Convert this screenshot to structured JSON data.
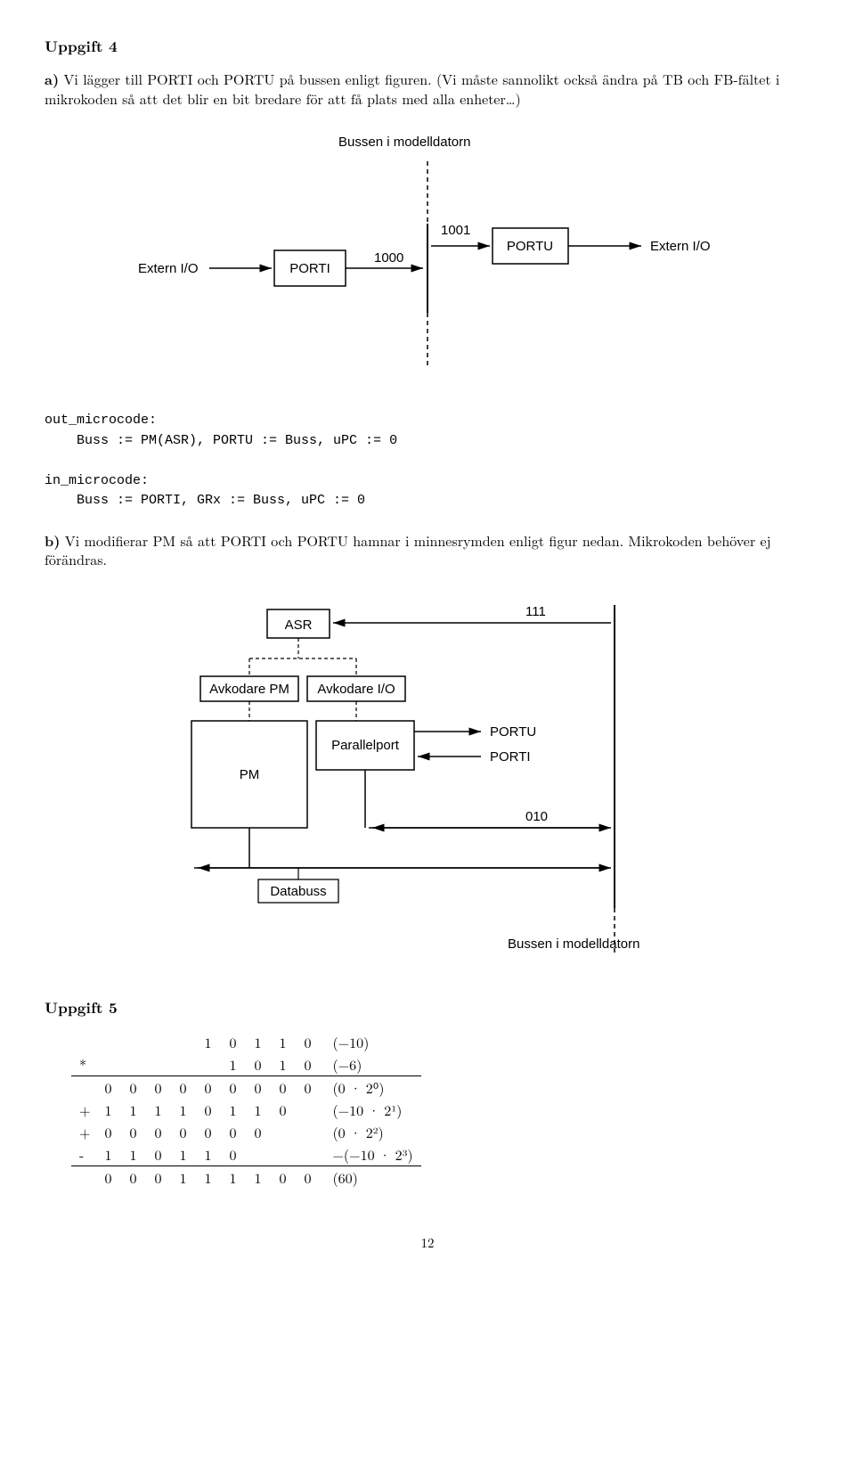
{
  "task4": {
    "heading": "Uppgift 4",
    "a_label": "a)",
    "a_text": " Vi lägger till PORTI och PORTU på bussen enligt figuren. (Vi måste sannolikt också ändra på TB och FB-fältet i mikrokoden så att det blir en bit bredare för att få plats med alla enheter…)",
    "fig1": {
      "caption": "Bussen i modelldatorn",
      "extern_io_left": "Extern I/O",
      "porti": "PORTI",
      "n1000": "1000",
      "n1001": "1001",
      "portu": "PORTU",
      "extern_io_right": "Extern I/O"
    },
    "out_label": "out_microcode:",
    "out_code": "    Buss := PM(ASR), PORTU := Buss, uPC := 0",
    "in_label": "in_microcode:",
    "in_code": "    Buss := PORTI, GRx := Buss, uPC := 0",
    "b_label": "b)",
    "b_text": " Vi modifierar PM så att PORTI och PORTU hamnar i minnesrymden enligt figur nedan. Mikrokoden behöver ej förändras.",
    "fig2": {
      "asr": "ASR",
      "n111": "111",
      "avk_pm": "Avkodare PM",
      "avk_io": "Avkodare I/O",
      "pm": "PM",
      "parallel": "Parallelport",
      "portu": "PORTU",
      "porti": "PORTI",
      "n010": "010",
      "databuss": "Databuss",
      "caption": "Bussen i modelldatorn"
    }
  },
  "task5": {
    "heading": "Uppgift 5",
    "rows": [
      {
        "op": "",
        "cells": [
          "",
          "",
          "",
          "",
          "1",
          "0",
          "1",
          "1",
          "0"
        ],
        "ann": "(−10)"
      },
      {
        "op": "*",
        "cells": [
          "",
          "",
          "",
          "",
          "",
          "1",
          "0",
          "1",
          "0"
        ],
        "ann": "(−6)"
      },
      {
        "op": "",
        "cells": [
          "0",
          "0",
          "0",
          "0",
          "0",
          "0",
          "0",
          "0",
          "0"
        ],
        "ann": "(0 · 2⁰)",
        "rule": true
      },
      {
        "op": "+",
        "cells": [
          "1",
          "1",
          "1",
          "1",
          "0",
          "1",
          "1",
          "0",
          ""
        ],
        "ann": "(−10 · 2¹)"
      },
      {
        "op": "+",
        "cells": [
          "0",
          "0",
          "0",
          "0",
          "0",
          "0",
          "0",
          "",
          ""
        ],
        "ann": "(0 · 2²)"
      },
      {
        "op": "-",
        "cells": [
          "1",
          "1",
          "0",
          "1",
          "1",
          "0",
          "",
          "",
          ""
        ],
        "ann": "−(−10 · 2³)"
      },
      {
        "op": "",
        "cells": [
          "0",
          "0",
          "0",
          "1",
          "1",
          "1",
          "1",
          "0",
          "0"
        ],
        "ann": "(60)",
        "rule": true
      }
    ]
  },
  "page_num": "12"
}
